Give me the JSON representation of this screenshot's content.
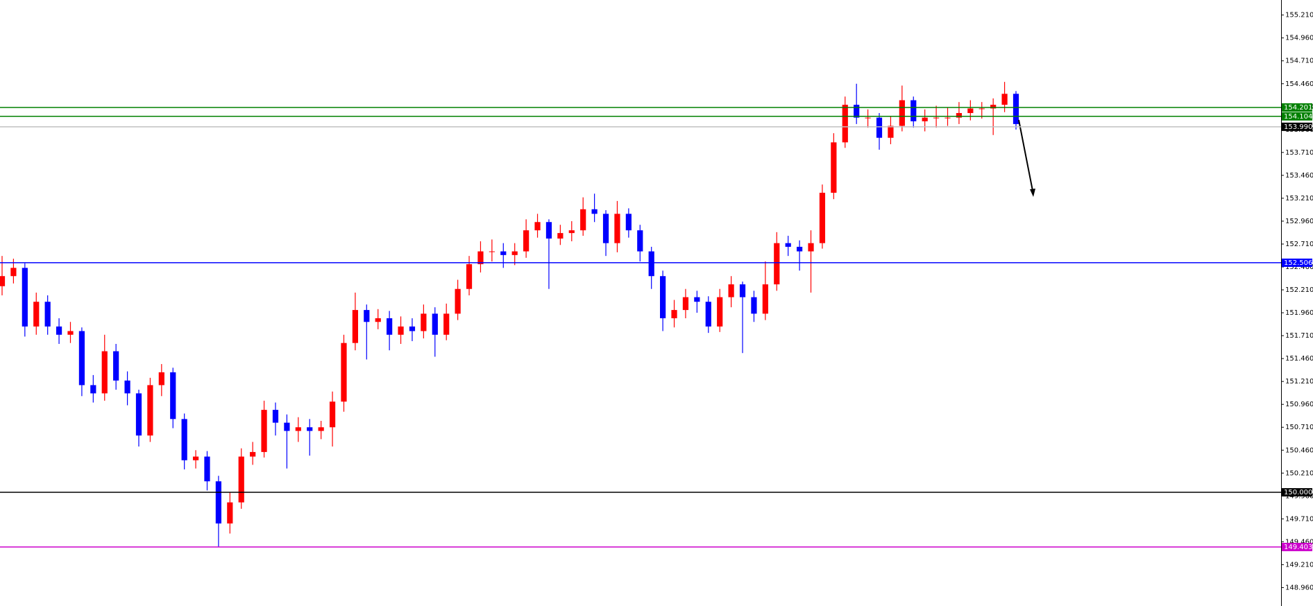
{
  "chart_data": {
    "type": "candlestick",
    "up_color": "#ff0000",
    "down_color": "#0000ff",
    "ylim": [
      148.759,
      155.374
    ],
    "yticks": [
      {
        "value": 155.21,
        "label": "155.210"
      },
      {
        "value": 154.96,
        "label": "154.960"
      },
      {
        "value": 154.71,
        "label": "154.710"
      },
      {
        "value": 154.46,
        "label": "154.460"
      },
      {
        "value": 154.21,
        "label": "154.210"
      },
      {
        "value": 153.96,
        "label": "153.960"
      },
      {
        "value": 153.71,
        "label": "153.710"
      },
      {
        "value": 153.46,
        "label": "153.460"
      },
      {
        "value": 153.21,
        "label": "153.210"
      },
      {
        "value": 152.96,
        "label": "152.960"
      },
      {
        "value": 152.71,
        "label": "152.710"
      },
      {
        "value": 152.46,
        "label": "152.460"
      },
      {
        "value": 152.21,
        "label": "152.210"
      },
      {
        "value": 151.96,
        "label": "151.960"
      },
      {
        "value": 151.71,
        "label": "151.710"
      },
      {
        "value": 151.46,
        "label": "151.460"
      },
      {
        "value": 151.21,
        "label": "151.210"
      },
      {
        "value": 150.96,
        "label": "150.960"
      },
      {
        "value": 150.71,
        "label": "150.710"
      },
      {
        "value": 150.46,
        "label": "150.460"
      },
      {
        "value": 150.21,
        "label": "150.210"
      },
      {
        "value": 149.96,
        "label": "149.960"
      },
      {
        "value": 149.71,
        "label": "149.710"
      },
      {
        "value": 149.46,
        "label": "149.460"
      },
      {
        "value": 149.21,
        "label": "149.210"
      },
      {
        "value": 148.96,
        "label": "148.960"
      }
    ],
    "levels": [
      {
        "value": 154.201,
        "color": "#008000"
      },
      {
        "value": 154.104,
        "color": "#008000"
      },
      {
        "value": 153.99,
        "label": "153.990",
        "color": "#c0c0c0",
        "tag_color": "#000000"
      },
      {
        "value": 152.506,
        "color": "#0000ff"
      },
      {
        "value": 150.0,
        "label": "150.000",
        "color": "#000000"
      },
      {
        "value": 149.403,
        "color": "#cc00cc"
      }
    ],
    "open": [
      152.25,
      152.36,
      152.45,
      151.81,
      152.08,
      151.81,
      151.72,
      151.76,
      151.17,
      151.08,
      151.54,
      151.22,
      151.08,
      150.62,
      151.17,
      151.31,
      150.8,
      150.35,
      150.39,
      150.12,
      149.66,
      149.89,
      150.39,
      150.44,
      150.9,
      150.76,
      150.67,
      150.71,
      150.67,
      150.71,
      150.99,
      151.63,
      151.99,
      151.86,
      151.9,
      151.72,
      151.81,
      151.76,
      151.95,
      151.72,
      151.95,
      152.22,
      152.49,
      152.63,
      152.63,
      152.59,
      152.63,
      152.86,
      152.95,
      152.77,
      152.83,
      152.86,
      153.09,
      153.04,
      152.72,
      153.04,
      152.86,
      152.63,
      152.36,
      151.9,
      151.99,
      152.13,
      152.08,
      151.81,
      152.13,
      152.27,
      152.13,
      151.95,
      152.27,
      152.72,
      152.68,
      152.63,
      152.72,
      153.27,
      153.82,
      154.23,
      154.09,
      154.09,
      153.87,
      154.0,
      154.28,
      154.05,
      154.09,
      154.09,
      154.09,
      154.14,
      154.19,
      154.19,
      154.23,
      154.35
    ],
    "high": [
      152.58,
      152.55,
      152.5,
      152.18,
      152.15,
      151.9,
      151.86,
      151.8,
      151.28,
      151.72,
      151.62,
      151.32,
      151.12,
      151.25,
      151.4,
      151.36,
      150.86,
      150.46,
      150.45,
      150.18,
      150.0,
      150.48,
      150.55,
      151.0,
      150.98,
      150.85,
      150.82,
      150.8,
      150.78,
      151.1,
      151.72,
      152.18,
      152.05,
      152.0,
      151.98,
      151.92,
      151.9,
      152.05,
      152.02,
      152.06,
      152.32,
      152.58,
      152.74,
      152.76,
      152.72,
      152.72,
      152.98,
      153.04,
      152.98,
      152.92,
      152.96,
      153.22,
      153.26,
      153.08,
      153.18,
      153.1,
      152.92,
      152.68,
      152.42,
      152.1,
      152.22,
      152.2,
      152.14,
      152.22,
      152.36,
      152.3,
      152.2,
      152.52,
      152.84,
      152.8,
      152.75,
      152.86,
      153.36,
      153.92,
      154.32,
      154.46,
      154.18,
      154.14,
      154.1,
      154.44,
      154.32,
      154.18,
      154.22,
      154.2,
      154.26,
      154.28,
      154.26,
      154.3,
      154.48,
      154.38
    ],
    "low": [
      152.15,
      152.28,
      151.7,
      151.72,
      151.72,
      151.62,
      151.63,
      151.05,
      150.98,
      151.0,
      151.12,
      150.95,
      150.5,
      150.55,
      151.05,
      150.7,
      150.25,
      150.26,
      150.02,
      149.4,
      149.55,
      149.82,
      150.3,
      150.38,
      150.62,
      150.26,
      150.55,
      150.4,
      150.58,
      150.5,
      150.88,
      151.55,
      151.45,
      151.78,
      151.55,
      151.62,
      151.65,
      151.68,
      151.48,
      151.66,
      151.88,
      152.15,
      152.4,
      152.52,
      152.45,
      152.48,
      152.56,
      152.78,
      152.22,
      152.7,
      152.74,
      152.8,
      152.95,
      152.58,
      152.62,
      152.78,
      152.52,
      152.22,
      151.76,
      151.8,
      151.9,
      151.96,
      151.74,
      151.75,
      152.02,
      151.52,
      151.86,
      151.88,
      152.2,
      152.58,
      152.42,
      152.18,
      152.66,
      153.2,
      153.76,
      154.02,
      153.98,
      153.74,
      153.8,
      153.94,
      153.98,
      153.94,
      153.98,
      154.0,
      154.02,
      154.06,
      154.08,
      153.9,
      154.15,
      153.96
    ],
    "close": [
      152.36,
      152.45,
      151.81,
      152.08,
      151.81,
      151.72,
      151.76,
      151.17,
      151.08,
      151.54,
      151.22,
      151.08,
      150.62,
      151.17,
      151.31,
      150.8,
      150.35,
      150.39,
      150.12,
      149.66,
      149.89,
      150.39,
      150.44,
      150.9,
      150.76,
      150.67,
      150.71,
      150.67,
      150.71,
      150.99,
      151.63,
      151.99,
      151.86,
      151.9,
      151.72,
      151.81,
      151.76,
      151.95,
      151.72,
      151.95,
      152.22,
      152.49,
      152.63,
      152.63,
      152.59,
      152.63,
      152.86,
      152.95,
      152.77,
      152.83,
      152.86,
      153.09,
      153.04,
      152.72,
      153.04,
      152.86,
      152.63,
      152.36,
      151.9,
      151.99,
      152.13,
      152.08,
      151.81,
      152.13,
      152.27,
      152.13,
      151.95,
      152.27,
      152.72,
      152.68,
      152.63,
      152.72,
      153.27,
      153.82,
      154.23,
      154.09,
      154.09,
      153.87,
      154.0,
      154.28,
      154.05,
      154.09,
      154.09,
      154.09,
      154.14,
      154.19,
      154.19,
      154.23,
      154.35,
      154.02
    ]
  }
}
